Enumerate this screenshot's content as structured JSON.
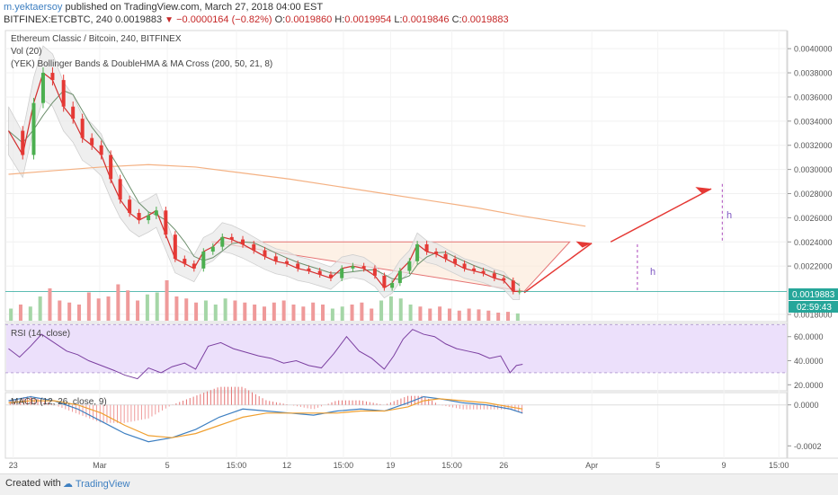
{
  "header": {
    "user": "m.yektaersoy",
    "published": " published on TradingView.com, March 27, 2018 04:00 EST",
    "symbol": "BITFINEX:ETCBTC, 240",
    "price": "0.0019883",
    "arrow": "▼",
    "change": "−0.0000164 (−0.82%)",
    "o_label": "O:",
    "o_val": "0.0019860",
    "h_label": "H:",
    "h_val": "0.0019954",
    "l_label": "L:",
    "l_val": "0.0019846",
    "c_label": "C:",
    "c_val": "0.0019883"
  },
  "legend": {
    "title": "Ethereum Classic / Bitcoin, 240, BITFINEX",
    "vol": "Vol (20)",
    "indicator": "(YEK) Bollinger Bands & DoubleHMA & MA Cross (200, 50, 21, 8)",
    "rsi": "RSI (14, close)",
    "macd": "MACD (12, 26, close, 9)"
  },
  "price_badges": {
    "last": "0.0019883",
    "countdown": "02:59:43"
  },
  "annotations": {
    "h1": "h",
    "h2": "h"
  },
  "colors": {
    "up": "#4caf50",
    "down": "#e53935",
    "ma_short": "#d32f2f",
    "ma_mid": "#6d8f6d",
    "ma_long": "#f4b183",
    "band": "#cfcfcf",
    "rsi_band": "#ece0fb",
    "rsi_line": "#7b3fa0",
    "macd_line": "#3d7fc1",
    "signal_line": "#f0a030",
    "triangle": "#fbe8d6"
  },
  "chart_data": [
    {
      "type": "candlestick",
      "title": "Ethereum Classic / Bitcoin, 240, BITFINEX",
      "y_ticks": [
        "0.0040000",
        "0.0038000",
        "0.0036000",
        "0.0034000",
        "0.0032000",
        "0.0030000",
        "0.0028000",
        "0.0026000",
        "0.0024000",
        "0.0022000",
        "0.0018000"
      ],
      "y_tick_values": [
        0.004,
        0.0038,
        0.0036,
        0.0034,
        0.0032,
        0.003,
        0.0028,
        0.0026,
        0.0024,
        0.0022,
        0.0018
      ],
      "ylim": [
        0.00174,
        0.00415
      ],
      "x_ticks": [
        "23",
        "Mar",
        "5",
        "15:00",
        "12",
        "15:00",
        "19",
        "15:00",
        "26",
        "Apr",
        "5",
        "9",
        "15:00"
      ],
      "x_tick_days": [
        -5.6,
        -0.1,
        4.2,
        8.6,
        11.8,
        15.4,
        18.4,
        22.3,
        25.6,
        31.2,
        35.4,
        39.6,
        43.1
      ],
      "x_start": "Feb 23",
      "close_points": [
        [
          -5.9,
          0.00332
        ],
        [
          -5.0,
          0.00312
        ],
        [
          -4.3,
          0.00355
        ],
        [
          -3.7,
          0.0038
        ],
        [
          -3.1,
          0.00374
        ],
        [
          -2.4,
          0.00352
        ],
        [
          -1.8,
          0.00342
        ],
        [
          -1.2,
          0.00326
        ],
        [
          -0.6,
          0.0032
        ],
        [
          0.0,
          0.00312
        ],
        [
          0.6,
          0.00292
        ],
        [
          1.2,
          0.00275
        ],
        [
          1.8,
          0.00264
        ],
        [
          2.4,
          0.00258
        ],
        [
          3.0,
          0.00262
        ],
        [
          3.5,
          0.00266
        ],
        [
          4.1,
          0.00246
        ],
        [
          4.7,
          0.00226
        ],
        [
          5.3,
          0.00222
        ],
        [
          5.9,
          0.00218
        ],
        [
          6.5,
          0.00232
        ],
        [
          7.1,
          0.00236
        ],
        [
          7.7,
          0.00244
        ],
        [
          8.3,
          0.00242
        ],
        [
          9.0,
          0.00238
        ],
        [
          9.7,
          0.00233
        ],
        [
          10.4,
          0.00228
        ],
        [
          11.1,
          0.00224
        ],
        [
          11.8,
          0.00222
        ],
        [
          12.5,
          0.00218
        ],
        [
          13.2,
          0.00216
        ],
        [
          13.9,
          0.00213
        ],
        [
          14.6,
          0.0021
        ],
        [
          15.3,
          0.00218
        ],
        [
          16.0,
          0.0022
        ],
        [
          16.7,
          0.00218
        ],
        [
          17.4,
          0.00212
        ],
        [
          18.0,
          0.00202
        ],
        [
          18.5,
          0.00206
        ],
        [
          19.0,
          0.00216
        ],
        [
          19.6,
          0.00224
        ],
        [
          20.1,
          0.00238
        ],
        [
          20.7,
          0.00232
        ],
        [
          21.3,
          0.0023
        ],
        [
          21.9,
          0.00226
        ],
        [
          22.5,
          0.00222
        ],
        [
          23.1,
          0.00218
        ],
        [
          23.7,
          0.00216
        ],
        [
          24.3,
          0.00214
        ],
        [
          25.0,
          0.0021
        ],
        [
          25.6,
          0.00208
        ],
        [
          26.2,
          0.00199
        ],
        [
          26.6,
          0.00199
        ]
      ],
      "sma200": [
        [
          -5.9,
          0.00296
        ],
        [
          -3.0,
          0.00299
        ],
        [
          0.0,
          0.00302
        ],
        [
          3.0,
          0.00304
        ],
        [
          6.0,
          0.00302
        ],
        [
          9.0,
          0.00297
        ],
        [
          12.0,
          0.00292
        ],
        [
          15.0,
          0.00286
        ],
        [
          18.0,
          0.0028
        ],
        [
          21.0,
          0.00274
        ],
        [
          24.0,
          0.00268
        ],
        [
          26.5,
          0.00262
        ],
        [
          30.8,
          0.00253
        ]
      ],
      "current_price": 0.0019883,
      "volume": {
        "ylim_fraction_note": "relative",
        "bars": [
          0.3,
          0.4,
          0.35,
          0.6,
          0.8,
          0.5,
          0.45,
          0.4,
          0.7,
          0.55,
          0.6,
          0.9,
          0.75,
          0.5,
          0.65,
          0.7,
          1.0,
          0.6,
          0.55,
          0.45,
          0.5,
          0.4,
          0.55,
          0.5,
          0.45,
          0.4,
          0.35,
          0.45,
          0.5,
          0.4,
          0.35,
          0.45,
          0.4,
          0.3,
          0.35,
          0.4,
          0.45,
          0.3,
          0.5,
          0.6,
          0.55,
          0.4,
          0.35,
          0.3,
          0.35,
          0.3,
          0.25,
          0.3,
          0.28,
          0.25,
          0.2,
          0.22,
          0.18
        ]
      }
    },
    {
      "type": "line",
      "title": "RSI (14, close)",
      "y_ticks": [
        "60.0000",
        "40.0000",
        "20.0000"
      ],
      "y_tick_values": [
        60,
        40,
        20
      ],
      "ylim": [
        15,
        71
      ],
      "band": [
        30,
        70
      ],
      "values": [
        [
          -5.9,
          50
        ],
        [
          -5.2,
          43
        ],
        [
          -4.5,
          52
        ],
        [
          -3.8,
          62
        ],
        [
          -3.0,
          55
        ],
        [
          -2.2,
          48
        ],
        [
          -1.5,
          45
        ],
        [
          -0.8,
          40
        ],
        [
          0.0,
          36
        ],
        [
          0.8,
          32
        ],
        [
          1.5,
          28
        ],
        [
          2.3,
          25
        ],
        [
          3.0,
          34
        ],
        [
          3.8,
          30
        ],
        [
          4.5,
          35
        ],
        [
          5.3,
          38
        ],
        [
          6.0,
          33
        ],
        [
          6.8,
          52
        ],
        [
          7.6,
          55
        ],
        [
          8.4,
          50
        ],
        [
          9.2,
          47
        ],
        [
          10.0,
          44
        ],
        [
          10.8,
          42
        ],
        [
          11.6,
          38
        ],
        [
          12.4,
          40
        ],
        [
          13.2,
          36
        ],
        [
          14.0,
          34
        ],
        [
          14.8,
          46
        ],
        [
          15.6,
          60
        ],
        [
          16.4,
          48
        ],
        [
          17.2,
          42
        ],
        [
          18.0,
          33
        ],
        [
          18.6,
          44
        ],
        [
          19.2,
          58
        ],
        [
          19.8,
          66
        ],
        [
          20.5,
          62
        ],
        [
          21.2,
          60
        ],
        [
          21.9,
          54
        ],
        [
          22.6,
          50
        ],
        [
          23.3,
          48
        ],
        [
          24.0,
          46
        ],
        [
          24.7,
          42
        ],
        [
          25.4,
          44
        ],
        [
          26.0,
          30
        ],
        [
          26.4,
          36
        ],
        [
          26.8,
          37
        ]
      ]
    },
    {
      "type": "line",
      "title": "MACD (12, 26, close, 9)",
      "y_ticks": [
        "0.0000",
        "-0.0002"
      ],
      "y_tick_values": [
        0.0,
        -0.0002
      ],
      "ylim": [
        -0.00026,
        6e-05
      ],
      "series": [
        {
          "name": "MACD",
          "values": [
            [
              -5.9,
              2e-05
            ],
            [
              -4.5,
              4e-05
            ],
            [
              -3.0,
              2e-05
            ],
            [
              -1.5,
              -2e-05
            ],
            [
              0.0,
              -8e-05
            ],
            [
              1.5,
              -0.00014
            ],
            [
              3.0,
              -0.00018
            ],
            [
              4.5,
              -0.00016
            ],
            [
              6.0,
              -0.00012
            ],
            [
              7.5,
              -6e-05
            ],
            [
              9.0,
              -2e-05
            ],
            [
              10.5,
              -3e-05
            ],
            [
              12.0,
              -4e-05
            ],
            [
              13.5,
              -5e-05
            ],
            [
              15.0,
              -3e-05
            ],
            [
              16.5,
              -2e-05
            ],
            [
              18.0,
              -3e-05
            ],
            [
              19.5,
              1e-05
            ],
            [
              20.5,
              4e-05
            ],
            [
              21.5,
              3e-05
            ],
            [
              23.0,
              1e-05
            ],
            [
              24.5,
              0.0
            ],
            [
              26.0,
              -2e-05
            ],
            [
              26.8,
              -4e-05
            ]
          ]
        },
        {
          "name": "Signal",
          "values": [
            [
              -5.9,
              1e-05
            ],
            [
              -4.5,
              2e-05
            ],
            [
              -3.0,
              2e-05
            ],
            [
              -1.5,
              0.0
            ],
            [
              0.0,
              -4e-05
            ],
            [
              1.5,
              -0.0001
            ],
            [
              3.0,
              -0.00015
            ],
            [
              4.5,
              -0.00016
            ],
            [
              6.0,
              -0.00014
            ],
            [
              7.5,
              -0.0001
            ],
            [
              9.0,
              -6e-05
            ],
            [
              10.5,
              -4e-05
            ],
            [
              12.0,
              -4e-05
            ],
            [
              13.5,
              -4e-05
            ],
            [
              15.0,
              -4e-05
            ],
            [
              16.5,
              -3e-05
            ],
            [
              18.0,
              -3e-05
            ],
            [
              19.5,
              -1e-05
            ],
            [
              20.5,
              2e-05
            ],
            [
              21.5,
              3e-05
            ],
            [
              23.0,
              2e-05
            ],
            [
              24.5,
              1e-05
            ],
            [
              26.0,
              -1e-05
            ],
            [
              26.8,
              -2e-05
            ]
          ]
        }
      ]
    }
  ],
  "footer": {
    "created_with": "Created with",
    "brand": "TradingView"
  }
}
